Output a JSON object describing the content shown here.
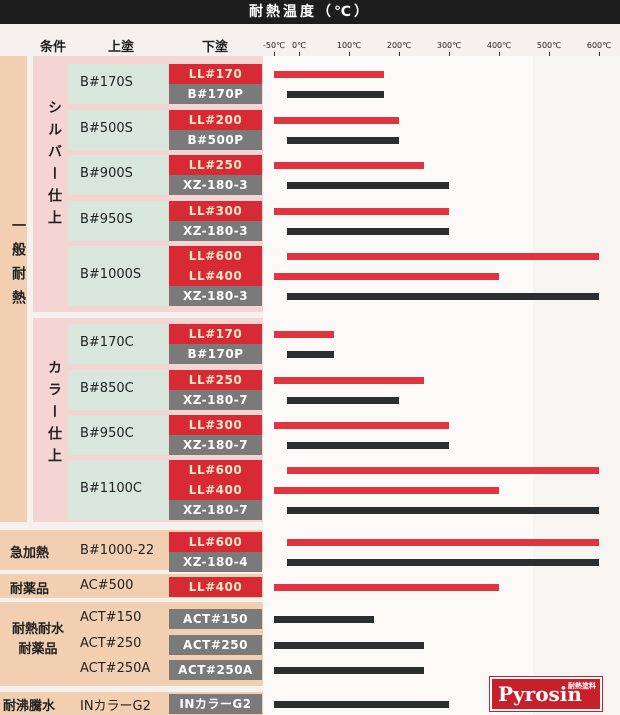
{
  "title": "耐熱温度（℃）",
  "headers": {
    "condition": "条件",
    "top_coat": "上塗",
    "under_coat": "下塗"
  },
  "ticks": [
    "-50℃",
    "0℃",
    "100℃",
    "200℃",
    "300℃",
    "400℃",
    "500℃",
    "600℃"
  ],
  "categories": [
    "一般耐熱",
    "急加熱",
    "耐薬品",
    "耐熱耐水耐薬品",
    "耐沸騰水"
  ],
  "subcategories": [
    "シルバー仕上",
    "カラー仕上"
  ],
  "groups": [
    {
      "top": "B#170S",
      "rows": [
        {
          "under": "LL#170",
          "kind": "red"
        },
        {
          "under": "B#170P",
          "kind": "gray"
        }
      ]
    },
    {
      "top": "B#500S",
      "rows": [
        {
          "under": "LL#200",
          "kind": "red"
        },
        {
          "under": "B#500P",
          "kind": "gray"
        }
      ]
    },
    {
      "top": "B#900S",
      "rows": [
        {
          "under": "LL#250",
          "kind": "red"
        },
        {
          "under": "XZ-180-3",
          "kind": "gray"
        }
      ]
    },
    {
      "top": "B#950S",
      "rows": [
        {
          "under": "LL#300",
          "kind": "red"
        },
        {
          "under": "XZ-180-3",
          "kind": "gray"
        }
      ]
    },
    {
      "top": "B#1000S",
      "rows": [
        {
          "under": "LL#600",
          "kind": "red"
        },
        {
          "under": "LL#400",
          "kind": "red"
        },
        {
          "under": "XZ-180-3",
          "kind": "gray"
        }
      ]
    },
    {
      "top": "B#170C",
      "rows": [
        {
          "under": "LL#170",
          "kind": "red"
        },
        {
          "under": "B#170P",
          "kind": "gray"
        }
      ]
    },
    {
      "top": "B#850C",
      "rows": [
        {
          "under": "LL#250",
          "kind": "red"
        },
        {
          "under": "XZ-180-7",
          "kind": "gray"
        }
      ]
    },
    {
      "top": "B#950C",
      "rows": [
        {
          "under": "LL#300",
          "kind": "red"
        },
        {
          "under": "XZ-180-7",
          "kind": "gray"
        }
      ]
    },
    {
      "top": "B#1100C",
      "rows": [
        {
          "under": "LL#600",
          "kind": "red"
        },
        {
          "under": "LL#400",
          "kind": "red"
        },
        {
          "under": "XZ-180-7",
          "kind": "gray"
        }
      ]
    },
    {
      "top": "B#1000-22",
      "rows": [
        {
          "under": "LL#600",
          "kind": "red"
        },
        {
          "under": "XZ-180-4",
          "kind": "gray"
        }
      ]
    },
    {
      "top": "AC#500",
      "rows": [
        {
          "under": "LL#400",
          "kind": "red"
        }
      ]
    },
    {
      "top": "ACT#150",
      "rows": [
        {
          "under": "ACT#150",
          "kind": "gray"
        }
      ]
    },
    {
      "top": "ACT#250",
      "rows": [
        {
          "under": "ACT#250",
          "kind": "gray"
        }
      ]
    },
    {
      "top": "ACT#250A",
      "rows": [
        {
          "under": "ACT#250A",
          "kind": "gray"
        }
      ]
    },
    {
      "top": "INカラーG2",
      "rows": [
        {
          "under": "INカラーG2",
          "kind": "gray"
        }
      ]
    }
  ],
  "chart_data": {
    "type": "bar",
    "orientation": "horizontal",
    "title": "耐熱温度（℃）",
    "x_range": [
      -50,
      600
    ],
    "x_ticks": [
      -50,
      0,
      100,
      200,
      300,
      400,
      500,
      600
    ],
    "bars": [
      {
        "top": "B#170S",
        "under": "LL#170",
        "from": -50,
        "to": 170,
        "color": "red"
      },
      {
        "top": "B#170S",
        "under": "B#170P",
        "from": 0,
        "to": 170,
        "color": "dark"
      },
      {
        "top": "B#500S",
        "under": "LL#200",
        "from": -50,
        "to": 200,
        "color": "red"
      },
      {
        "top": "B#500S",
        "under": "B#500P",
        "from": 0,
        "to": 200,
        "color": "dark"
      },
      {
        "top": "B#900S",
        "under": "LL#250",
        "from": -50,
        "to": 250,
        "color": "red"
      },
      {
        "top": "B#900S",
        "under": "XZ-180-3",
        "from": 0,
        "to": 300,
        "color": "dark"
      },
      {
        "top": "B#950S",
        "under": "LL#300",
        "from": -50,
        "to": 300,
        "color": "red"
      },
      {
        "top": "B#950S",
        "under": "XZ-180-3",
        "from": 0,
        "to": 300,
        "color": "dark"
      },
      {
        "top": "B#1000S",
        "under": "LL#600",
        "from": 0,
        "to": 600,
        "color": "red"
      },
      {
        "top": "B#1000S",
        "under": "LL#400",
        "from": -50,
        "to": 400,
        "color": "red"
      },
      {
        "top": "B#1000S",
        "under": "XZ-180-3",
        "from": 0,
        "to": 600,
        "color": "dark"
      },
      {
        "top": "B#170C",
        "under": "LL#170",
        "from": -50,
        "to": 70,
        "color": "red"
      },
      {
        "top": "B#170C",
        "under": "B#170P",
        "from": 0,
        "to": 70,
        "color": "dark"
      },
      {
        "top": "B#850C",
        "under": "LL#250",
        "from": -50,
        "to": 250,
        "color": "red"
      },
      {
        "top": "B#850C",
        "under": "XZ-180-7",
        "from": 0,
        "to": 200,
        "color": "dark"
      },
      {
        "top": "B#950C",
        "under": "LL#300",
        "from": -50,
        "to": 300,
        "color": "red"
      },
      {
        "top": "B#950C",
        "under": "XZ-180-7",
        "from": 0,
        "to": 300,
        "color": "dark"
      },
      {
        "top": "B#1100C",
        "under": "LL#600",
        "from": 0,
        "to": 600,
        "color": "red"
      },
      {
        "top": "B#1100C",
        "under": "LL#400",
        "from": -50,
        "to": 400,
        "color": "red"
      },
      {
        "top": "B#1100C",
        "under": "XZ-180-7",
        "from": 0,
        "to": 600,
        "color": "dark"
      },
      {
        "top": "B#1000-22",
        "under": "LL#600",
        "from": 0,
        "to": 600,
        "color": "red"
      },
      {
        "top": "B#1000-22",
        "under": "XZ-180-4",
        "from": 0,
        "to": 600,
        "color": "dark"
      },
      {
        "top": "AC#500",
        "under": "LL#400",
        "from": -50,
        "to": 400,
        "color": "red"
      },
      {
        "top": "ACT#150",
        "under": "ACT#150",
        "from": -50,
        "to": 150,
        "color": "dark"
      },
      {
        "top": "ACT#250",
        "under": "ACT#250",
        "from": -50,
        "to": 250,
        "color": "dark"
      },
      {
        "top": "ACT#250A",
        "under": "ACT#250A",
        "from": -50,
        "to": 250,
        "color": "dark"
      },
      {
        "top": "INカラーG2",
        "under": "INカラーG2",
        "from": -50,
        "to": 300,
        "color": "dark"
      }
    ]
  },
  "logo": {
    "text": "Pyrosin",
    "sub": "耐熱塗料"
  },
  "colors": {
    "red": "#d82a35",
    "gray": "#7a7a7a",
    "dark_bar": "#2b2f30",
    "peach": "#f3cfb2",
    "pink": "#f3d6d6",
    "green_box": "#d8e6dc"
  }
}
